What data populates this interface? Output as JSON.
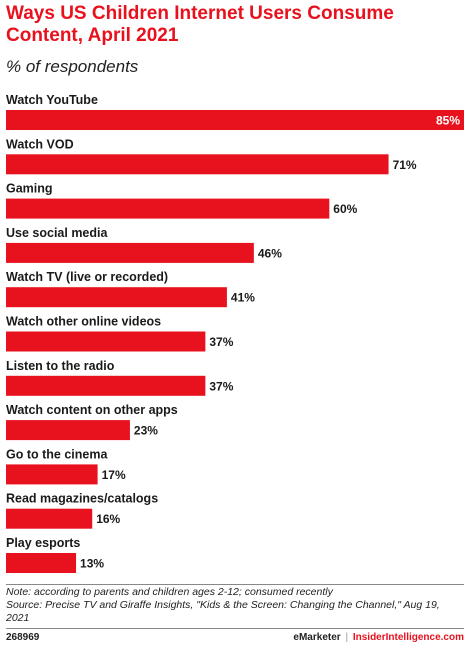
{
  "title": "Ways US Children Internet Users Consume Content, April 2021",
  "subtitle": "% of respondents",
  "colors": {
    "bar": "#e8111e",
    "title": "#e8111e",
    "text": "#1a1a1a"
  },
  "chart_data": {
    "type": "bar",
    "orientation": "horizontal",
    "title": "Ways US Children Internet Users Consume Content, April 2021",
    "subtitle": "% of respondents",
    "categories": [
      "Watch YouTube",
      "Watch VOD",
      "Gaming",
      "Use social media",
      "Watch TV (live or recorded)",
      "Watch other online videos",
      "Listen to the radio",
      "Watch content on other apps",
      "Go to the cinema",
      "Read magazines/catalogs",
      "Play esports"
    ],
    "values": [
      85,
      71,
      60,
      46,
      41,
      37,
      37,
      23,
      17,
      16,
      13
    ],
    "value_labels": [
      "85%",
      "71%",
      "60%",
      "46%",
      "41%",
      "37%",
      "37%",
      "23%",
      "17%",
      "16%",
      "13%"
    ],
    "unit": "%",
    "xlim": [
      0,
      85
    ],
    "grid": false,
    "legend": "none"
  },
  "notes": {
    "note": "Note: according to parents and children ages 2-12; consumed recently",
    "source": "Source: Precise TV and Giraffe Insights, \"Kids & the Screen: Changing the Channel,\" Aug 19, 2021"
  },
  "footer": {
    "chart_id": "268969",
    "brand": "eMarketer",
    "separator": "|",
    "site": "InsiderIntelligence.com"
  }
}
